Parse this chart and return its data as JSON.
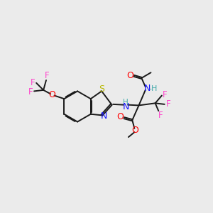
{
  "bg_color": "#ebebeb",
  "bond_color": "#1a1a1a",
  "colors": {
    "N": "#1414ff",
    "O": "#ff0000",
    "S": "#b8b800",
    "F": "#ff44cc",
    "H": "#44aaaa",
    "C": "#1a1a1a"
  },
  "figsize": [
    3.0,
    3.0
  ],
  "dpi": 100
}
